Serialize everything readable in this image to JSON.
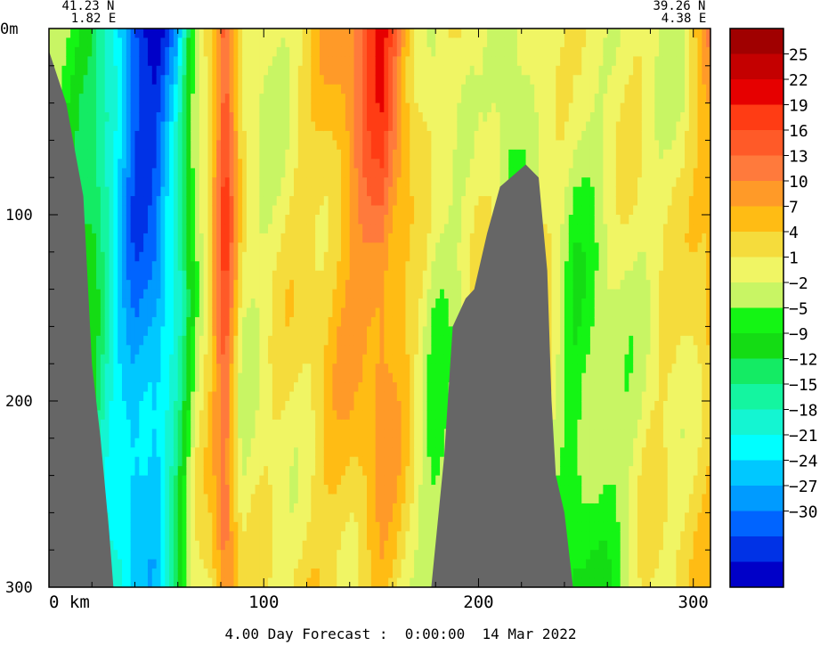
{
  "chart_data": {
    "type": "heatmap",
    "start_point": {
      "lat": "41.23 N",
      "lon": "1.82 E"
    },
    "end_point": {
      "lat": "39.26 N",
      "lon": "4.38 E"
    },
    "x_range_km": [
      0,
      308
    ],
    "x_ticks": [
      {
        "value": 0,
        "label": "0 km"
      },
      {
        "value": 100,
        "label": "100"
      },
      {
        "value": 200,
        "label": "200"
      },
      {
        "value": 300,
        "label": "300"
      }
    ],
    "y_range_m": [
      0,
      300
    ],
    "y_ticks": [
      {
        "value": 0,
        "label": "0m"
      },
      {
        "value": 100,
        "label": "100"
      },
      {
        "value": 200,
        "label": "200"
      },
      {
        "value": 300,
        "label": "300"
      }
    ],
    "colorbar": {
      "bands": [
        {
          "lo": 27,
          "hi": 30,
          "color": "#a00000"
        },
        {
          "lo": 25,
          "hi": 27,
          "color": "#c40000"
        },
        {
          "lo": 22,
          "hi": 25,
          "color": "#e60000"
        },
        {
          "lo": 19,
          "hi": 22,
          "color": "#ff3c14"
        },
        {
          "lo": 16,
          "hi": 19,
          "color": "#ff5a28"
        },
        {
          "lo": 13,
          "hi": 16,
          "color": "#ff7a3c"
        },
        {
          "lo": 10,
          "hi": 13,
          "color": "#ff9a28"
        },
        {
          "lo": 7,
          "hi": 10,
          "color": "#ffbc14"
        },
        {
          "lo": 4,
          "hi": 7,
          "color": "#f5dc3c"
        },
        {
          "lo": 1,
          "hi": 4,
          "color": "#f0f564"
        },
        {
          "lo": -2,
          "hi": 1,
          "color": "#c8f564"
        },
        {
          "lo": -5,
          "hi": -2,
          "color": "#14f514"
        },
        {
          "lo": -9,
          "hi": -5,
          "color": "#14dc14"
        },
        {
          "lo": -12,
          "hi": -9,
          "color": "#14eb64"
        },
        {
          "lo": -15,
          "hi": -12,
          "color": "#14f5a0"
        },
        {
          "lo": -18,
          "hi": -15,
          "color": "#14f5d2"
        },
        {
          "lo": -21,
          "hi": -18,
          "color": "#00ffff"
        },
        {
          "lo": -24,
          "hi": -21,
          "color": "#00c8ff"
        },
        {
          "lo": -27,
          "hi": -24,
          "color": "#009bff"
        },
        {
          "lo": -30,
          "hi": -27,
          "color": "#0064ff"
        },
        {
          "lo": -33,
          "hi": -30,
          "color": "#0032e6"
        },
        {
          "lo": -36,
          "hi": -33,
          "color": "#0000c8"
        }
      ],
      "tick_labels": [
        "25",
        "22",
        "19",
        "16",
        "13",
        "10",
        "7",
        "4",
        "1",
        "−2",
        "−5",
        "−9",
        "−12",
        "−15",
        "−18",
        "−21",
        "−24",
        "−27",
        "−30"
      ]
    },
    "field_profile": [
      {
        "x": 0,
        "top": 0,
        "bot": 0
      },
      {
        "x": 10,
        "top": -5,
        "bot": -5
      },
      {
        "x": 20,
        "top": -8,
        "bot": -10
      },
      {
        "x": 30,
        "top": -20,
        "bot": -17
      },
      {
        "x": 40,
        "top": -33,
        "bot": -22
      },
      {
        "x": 50,
        "top": -35,
        "bot": -20
      },
      {
        "x": 60,
        "top": -25,
        "bot": -8
      },
      {
        "x": 68,
        "top": -2,
        "bot": 1
      },
      {
        "x": 75,
        "top": 8,
        "bot": 5
      },
      {
        "x": 82,
        "top": 22,
        "bot": 15
      },
      {
        "x": 90,
        "top": 3,
        "bot": 2
      },
      {
        "x": 100,
        "top": 1,
        "bot": 3
      },
      {
        "x": 120,
        "top": 4,
        "bot": 5
      },
      {
        "x": 140,
        "top": 14,
        "bot": 6
      },
      {
        "x": 155,
        "top": 23,
        "bot": 8
      },
      {
        "x": 170,
        "top": 7,
        "bot": 3
      },
      {
        "x": 180,
        "top": 2,
        "bot": -3
      },
      {
        "x": 200,
        "top": 5,
        "bot": 2
      },
      {
        "x": 215,
        "top": -4,
        "bot": 3
      },
      {
        "x": 230,
        "top": 4,
        "bot": 5
      },
      {
        "x": 245,
        "top": 2,
        "bot": -6
      },
      {
        "x": 260,
        "top": 4,
        "bot": -3
      },
      {
        "x": 280,
        "top": 3,
        "bot": 3
      },
      {
        "x": 295,
        "top": 1,
        "bot": 5
      },
      {
        "x": 308,
        "top": 12,
        "bot": 6
      }
    ],
    "land_left": [
      [
        0,
        12
      ],
      [
        8,
        40
      ],
      [
        16,
        90
      ],
      [
        20,
        180
      ],
      [
        24,
        220
      ],
      [
        28,
        270
      ],
      [
        30,
        300
      ]
    ],
    "land_right": [
      [
        178,
        300
      ],
      [
        184,
        230
      ],
      [
        188,
        160
      ],
      [
        194,
        145
      ],
      [
        198,
        140
      ],
      [
        204,
        110
      ],
      [
        210,
        85
      ],
      [
        222,
        73
      ],
      [
        228,
        80
      ],
      [
        232,
        130
      ],
      [
        234,
        200
      ],
      [
        236,
        240
      ],
      [
        240,
        260
      ],
      [
        244,
        300
      ]
    ],
    "land_color": "#666666"
  },
  "caption": "4.00 Day Forecast :  0:00:00  14 Mar 2022"
}
